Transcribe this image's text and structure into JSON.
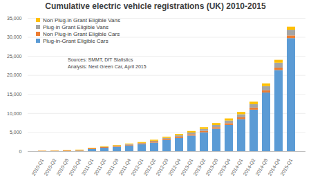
{
  "chart_data": {
    "type": "bar",
    "stacked": true,
    "title": "Cumulative electric vehicle registrations (UK) 2010-2015",
    "annotations": [
      "Sources: SMMT, DfT Statistics",
      "Analysis: Next Green Car, April 2015"
    ],
    "categories": [
      "2010-Q1",
      "2010-Q2",
      "2010-Q3",
      "2010-Q4",
      "2011-Q1",
      "2011-Q2",
      "2011-Q3",
      "2011-Q4",
      "2012-Q1",
      "2012-Q2",
      "2012-Q3",
      "2012-Q4",
      "2013-Q1",
      "2013-Q2",
      "2013-Q3",
      "2013-Q4",
      "2014-Q1",
      "2014-Q2",
      "2014-Q3",
      "2014-Q4",
      "2015-Q1"
    ],
    "series": [
      {
        "name": "Plug-in-Grant Eligible Cars",
        "color": "#5b9bd5",
        "values": [
          0,
          20,
          50,
          100,
          550,
          900,
          1150,
          1500,
          1800,
          2250,
          2900,
          3450,
          4100,
          4950,
          5900,
          6900,
          8400,
          10900,
          15400,
          21300,
          29700
        ]
      },
      {
        "name": "Non Plug-in Grant Eligible Cars",
        "color": "#ed7d31",
        "values": [
          100,
          110,
          150,
          170,
          180,
          200,
          220,
          230,
          250,
          280,
          300,
          320,
          350,
          380,
          400,
          450,
          500,
          550,
          600,
          650,
          700
        ]
      },
      {
        "name": "Plug-in Grant Eligible Vans",
        "color": "#a5a5a5",
        "values": [
          0,
          0,
          0,
          0,
          40,
          60,
          80,
          100,
          150,
          220,
          300,
          380,
          450,
          520,
          600,
          700,
          800,
          900,
          1100,
          1300,
          1500
        ]
      },
      {
        "name": "Non Plug-in Grant Eligible Vans",
        "color": "#ffc000",
        "values": [
          50,
          70,
          100,
          130,
          130,
          140,
          150,
          170,
          200,
          250,
          300,
          350,
          400,
          450,
          500,
          550,
          600,
          650,
          700,
          750,
          800
        ]
      }
    ],
    "ylim": [
      0,
      35000
    ],
    "yticks": [
      0,
      {
        "value": 5000,
        "label": "5,000"
      },
      {
        "value": 10000,
        "label": "10,000"
      },
      {
        "value": 15000,
        "label": "15,000"
      },
      {
        "value": 20000,
        "label": "20,000"
      },
      {
        "value": 25000,
        "label": "25,000"
      },
      {
        "value": 30000,
        "label": "30,000"
      },
      {
        "value": 35000,
        "label": "35,000"
      }
    ],
    "grid": true,
    "legend": "top-left"
  }
}
